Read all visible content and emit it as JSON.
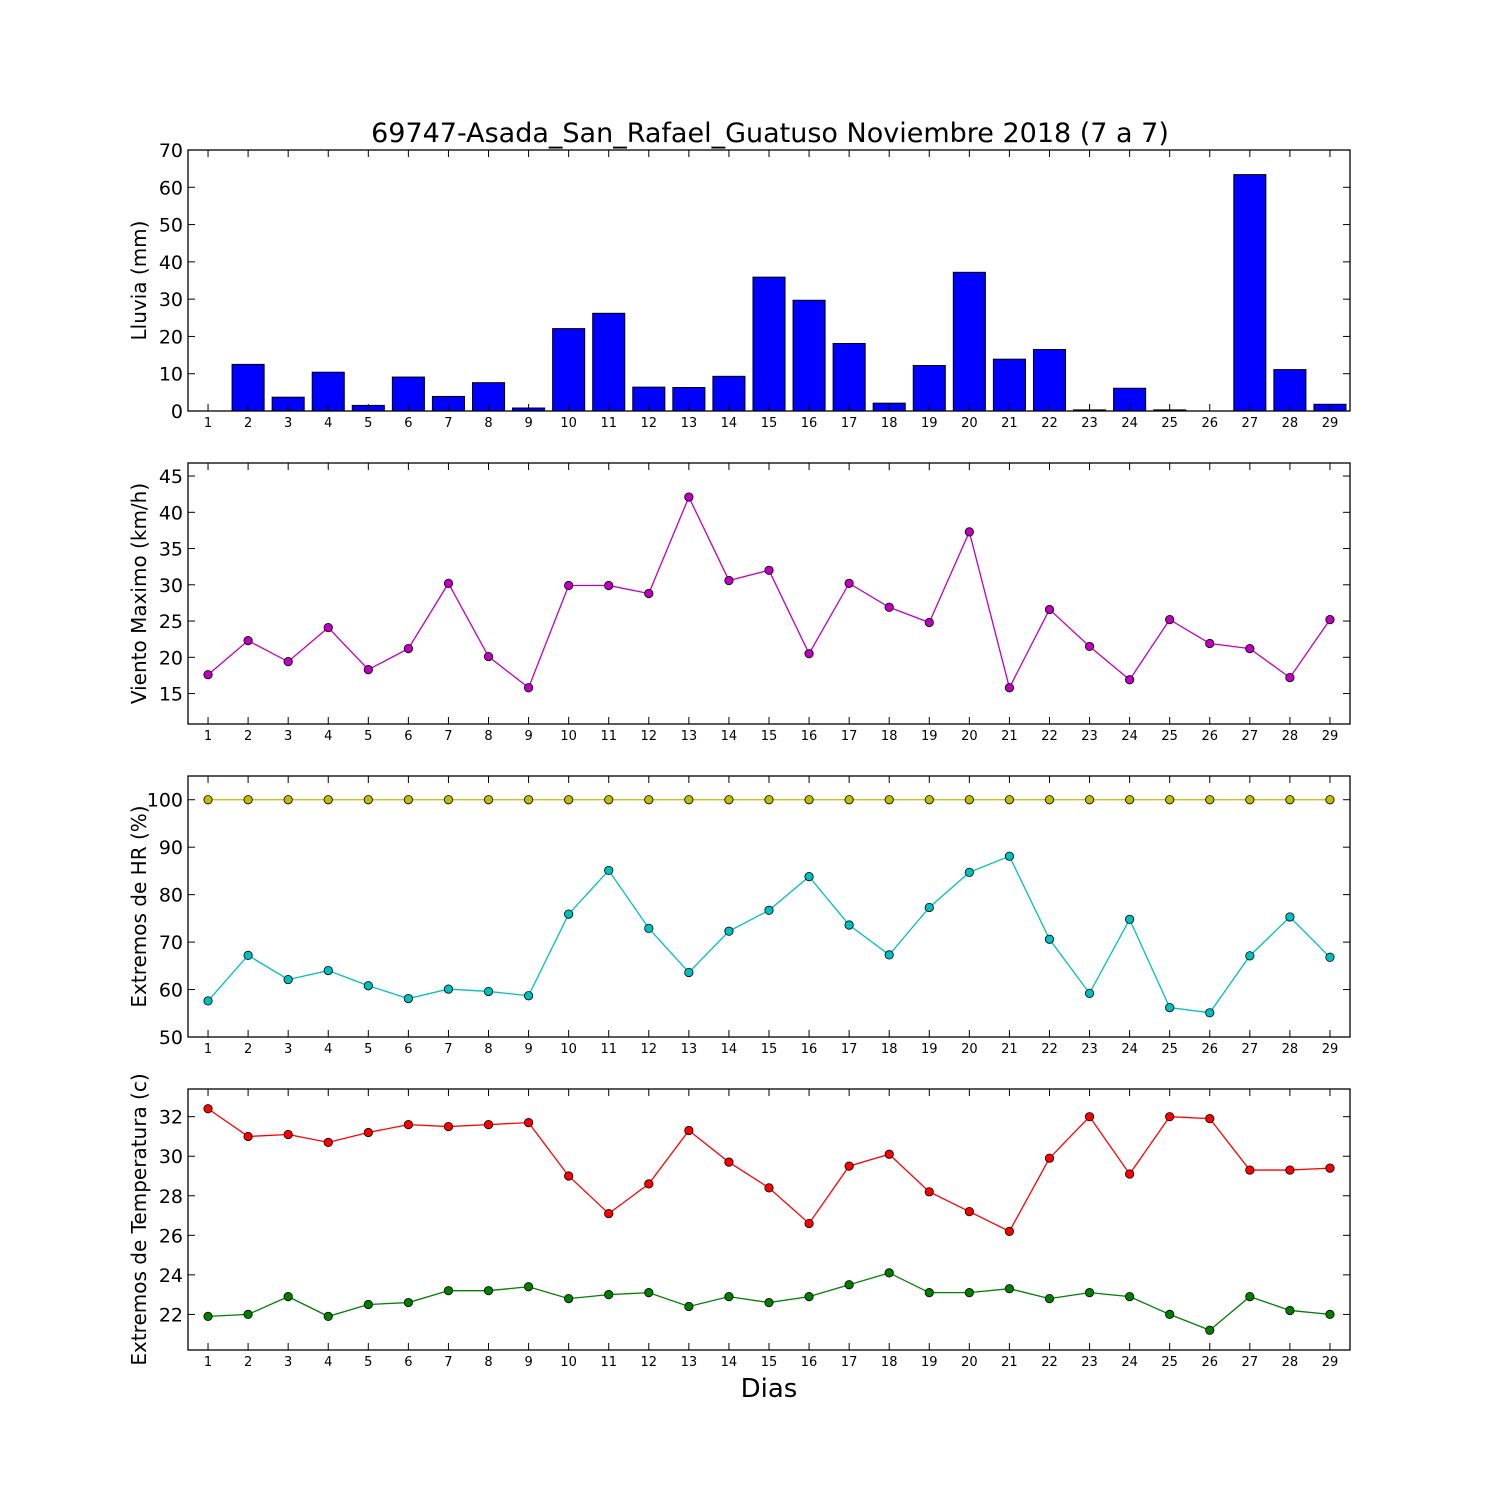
{
  "chart_data": {
    "title": "69747-Asada_San_Rafael_Guatuso Noviembre 2018  (7 a 7)",
    "xlabel": "Dias",
    "x": [
      1,
      2,
      3,
      4,
      5,
      6,
      7,
      8,
      9,
      10,
      11,
      12,
      13,
      14,
      15,
      16,
      17,
      18,
      19,
      20,
      21,
      22,
      23,
      24,
      25,
      26,
      27,
      28,
      29
    ],
    "xlim": [
      0.5,
      29.5
    ],
    "subplots": [
      {
        "type": "bar",
        "ylabel": "Lluvia (mm)",
        "ylim": [
          0,
          70
        ],
        "yticks": [
          0,
          10,
          20,
          30,
          40,
          50,
          60,
          70
        ],
        "color": "#0000ff",
        "series": [
          {
            "values": [
              0.0,
              12.5,
              3.7,
              10.4,
              1.5,
              9.1,
              3.9,
              7.6,
              0.8,
              22.1,
              26.2,
              6.4,
              6.3,
              9.3,
              35.9,
              29.7,
              18.1,
              2.1,
              12.2,
              37.2,
              13.9,
              16.5,
              0.3,
              6.1,
              0.3,
              0.0,
              63.4,
              11.1,
              1.8
            ]
          }
        ]
      },
      {
        "type": "line",
        "ylabel": "Viento Maximo (km/h)",
        "ylim": [
          10.8,
          46.8
        ],
        "yticks": [
          15,
          20,
          25,
          30,
          35,
          40,
          45
        ],
        "series": [
          {
            "color": "#bf00bf",
            "values": [
              17.6,
              22.3,
              19.4,
              24.1,
              18.3,
              21.2,
              30.2,
              20.1,
              15.8,
              29.9,
              29.9,
              28.8,
              42.1,
              30.6,
              32.0,
              20.5,
              30.2,
              26.9,
              24.8,
              37.3,
              15.8,
              26.6,
              21.5,
              16.9,
              25.2,
              21.9,
              21.2,
              17.2,
              25.2
            ]
          }
        ]
      },
      {
        "type": "line",
        "ylabel": "Extremos de HR (%)",
        "ylim": [
          50,
          105
        ],
        "yticks": [
          50,
          60,
          70,
          80,
          90,
          100
        ],
        "series": [
          {
            "color": "#bfbf00",
            "values": [
              100,
              100,
              100,
              100,
              100,
              100,
              100,
              100,
              100,
              100,
              100,
              100,
              100,
              100,
              100,
              100,
              100,
              100,
              100,
              100,
              100,
              100,
              100,
              100,
              100,
              100,
              100,
              100,
              100
            ]
          },
          {
            "color": "#00bfbf",
            "values": [
              57.6,
              67.2,
              62.1,
              64.0,
              60.8,
              58.1,
              60.1,
              59.6,
              58.7,
              75.9,
              85.1,
              72.9,
              63.6,
              72.3,
              76.7,
              83.8,
              73.6,
              67.3,
              77.3,
              84.7,
              88.1,
              70.6,
              59.2,
              74.8,
              56.2,
              55.1,
              67.1,
              75.3,
              66.8
            ]
          }
        ]
      },
      {
        "type": "line",
        "ylabel": "Extremos de Temperatura (c)",
        "ylim": [
          20.2,
          33.4
        ],
        "yticks": [
          22,
          24,
          26,
          28,
          30,
          32
        ],
        "series": [
          {
            "color": "#ff0000",
            "values": [
              32.4,
              31.0,
              31.1,
              30.7,
              31.2,
              31.6,
              31.5,
              31.6,
              31.7,
              29.0,
              27.1,
              28.6,
              31.3,
              29.7,
              28.4,
              26.6,
              29.5,
              30.1,
              28.2,
              27.2,
              26.2,
              29.9,
              32.0,
              29.1,
              32.0,
              31.9,
              29.3,
              29.3,
              29.4
            ]
          },
          {
            "color": "#007f00",
            "values": [
              21.9,
              22.0,
              22.9,
              21.9,
              22.5,
              22.6,
              23.2,
              23.2,
              23.4,
              22.8,
              23.0,
              23.1,
              22.4,
              22.9,
              22.6,
              22.9,
              23.5,
              24.1,
              23.1,
              23.1,
              23.3,
              22.8,
              23.1,
              22.9,
              22.0,
              21.2,
              22.9,
              22.2,
              22.0
            ]
          }
        ]
      }
    ]
  }
}
